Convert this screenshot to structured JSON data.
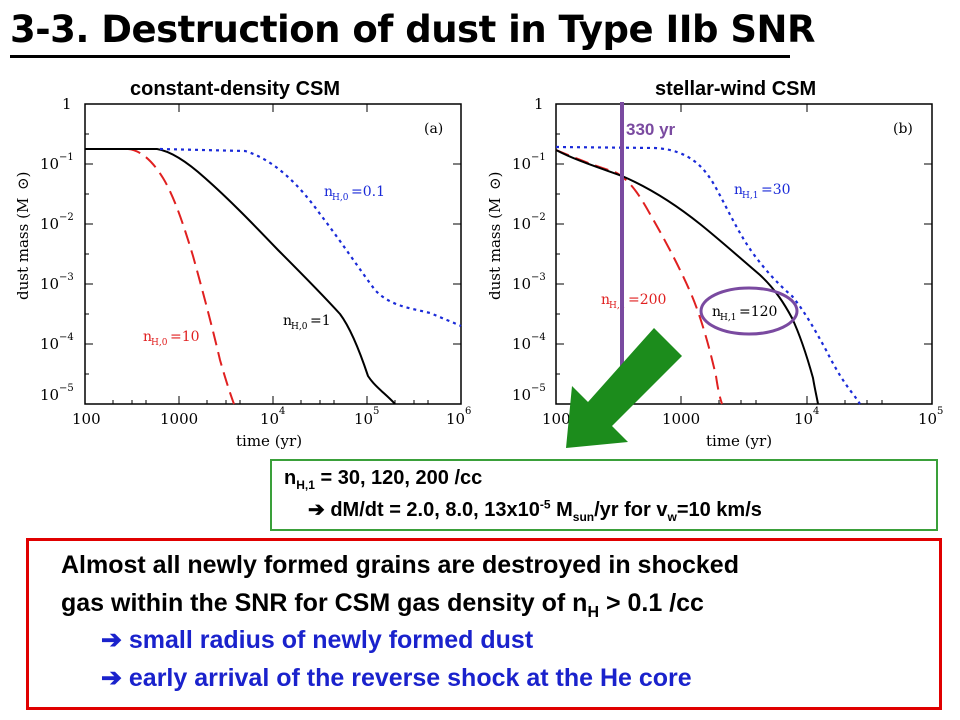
{
  "header": {
    "title": "3-3. Destruction of dust in Type IIb SNR",
    "left_subtitle": "constant-density CSM",
    "right_subtitle": "stellar-wind CSM"
  },
  "time_marker": {
    "label": "330 yr",
    "color": "#7a4aa0"
  },
  "plots": {
    "left": {
      "panel_label": "(a)",
      "xlabel": "time (yr)",
      "ylabel": "dust mass (M",
      "x_ticks": [
        "100",
        "1000",
        "10",
        "10",
        "10"
      ],
      "x_tick_exps": [
        "4",
        "5",
        "6"
      ],
      "y_ticks": [
        "1",
        "10",
        "10",
        "10",
        "10",
        "10"
      ],
      "y_tick_exps": [
        "−1",
        "−2",
        "−3",
        "−4",
        "−5"
      ],
      "annotations": {
        "red": "n",
        "red_sub": "H,0",
        "red_val": "=10",
        "black": "n",
        "black_sub": "H,0",
        "black_val": "=1",
        "blue": "n",
        "blue_sub": "H,0",
        "blue_val": "=0.1"
      }
    },
    "right": {
      "panel_label": "(b)",
      "xlabel": "time (yr)",
      "ylabel": "dust mass (M",
      "x_ticks": [
        "100",
        "1000",
        "10",
        "10"
      ],
      "x_tick_exps": [
        "4",
        "5"
      ],
      "y_ticks": [
        "1",
        "10",
        "10",
        "10",
        "10",
        "10"
      ],
      "y_tick_exps": [
        "−1",
        "−2",
        "−3",
        "−4",
        "−5"
      ],
      "annotations": {
        "red": "n",
        "red_sub": "H,1",
        "red_val": "=200",
        "black": "n",
        "black_sub": "H,1",
        "black_val": "=120",
        "blue": "n",
        "blue_sub": "H,1",
        "blue_val": "=30"
      }
    }
  },
  "info_box": {
    "line1_n": "n",
    "line1_sub": "H,1",
    "line1_rest": " = 30, 120, 200 /cc",
    "line2_arrow": "➔",
    "line2_a": " dM/dt = 2.0, 8.0, 13x10",
    "line2_sup": "-5",
    "line2_b": " M",
    "line2_sub": "sun",
    "line2_c": "/yr for v",
    "line2_sub2": "w",
    "line2_d": "=10 km/s"
  },
  "summary": {
    "line1": "Almost all newly formed grains are destroyed in shocked",
    "line2_a": "gas within the SNR for CSM gas density of n",
    "line2_sub": "H",
    "line2_b": " > 0.1 /cc",
    "line3": "➔ small radius of newly formed dust",
    "line4": "➔ early arrival of the reverse shock at the He core"
  },
  "colors": {
    "red_curve": "#e02020",
    "black_curve": "#000000",
    "blue_curve": "#1a2ad8",
    "purple_marker": "#7a4aa0",
    "green_arrow": "#1c8c1c",
    "summary_border": "#e00000",
    "summary_blue_text": "#1a22cc"
  }
}
